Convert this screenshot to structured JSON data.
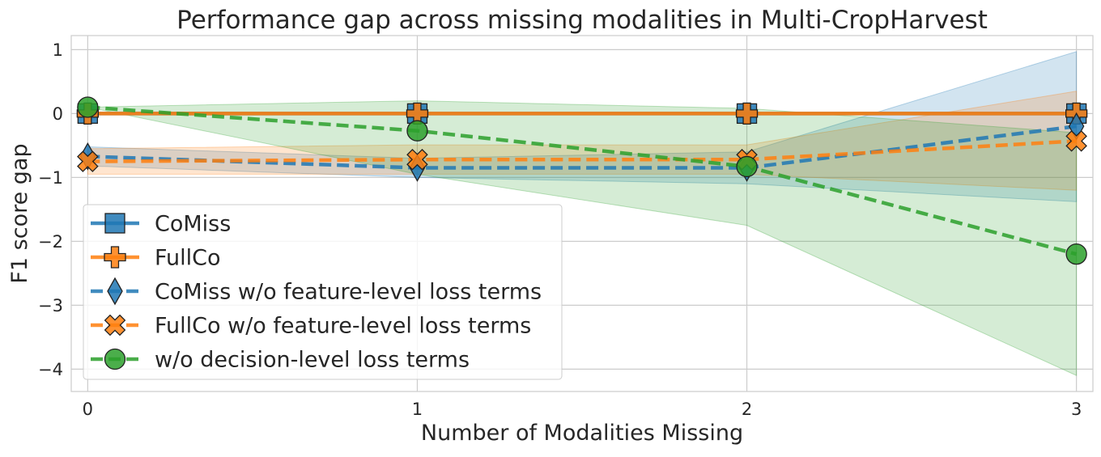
{
  "chart_data": {
    "type": "line",
    "title": "Performance gap across missing modalities in Multi-CropHarvest",
    "xlabel": "Number of Modalities Missing",
    "ylabel": "F1 score gap",
    "x": [
      0,
      1,
      2,
      3
    ],
    "xticks": [
      "0",
      "1",
      "2",
      "3"
    ],
    "yticks": [
      "1",
      "0",
      "−1",
      "−2",
      "−3",
      "−4"
    ],
    "ytick_values": [
      1,
      0,
      -1,
      -2,
      -3,
      -4
    ],
    "xlim": [
      -0.05,
      3.05
    ],
    "ylim": [
      -4.35,
      1.22
    ],
    "grid": true,
    "legend_position": "lower-left",
    "series": [
      {
        "name": "CoMiss",
        "values": [
          0,
          0,
          0,
          0
        ],
        "lower": [
          0,
          0,
          0,
          0
        ],
        "upper": [
          0,
          0,
          0,
          0
        ],
        "color": "#1f77b4",
        "dashed": false,
        "marker": "square"
      },
      {
        "name": "FullCo",
        "values": [
          0,
          0,
          0,
          0
        ],
        "lower": [
          0,
          0,
          0,
          0
        ],
        "upper": [
          0,
          0,
          0,
          0
        ],
        "color": "#ff7f0e",
        "dashed": false,
        "marker": "plus"
      },
      {
        "name": "CoMiss w/o feature-level loss terms",
        "values": [
          -0.67,
          -0.85,
          -0.85,
          -0.2
        ],
        "lower": [
          -0.82,
          -1.0,
          -1.1,
          -1.38
        ],
        "upper": [
          -0.52,
          -0.7,
          -0.6,
          0.97
        ],
        "color": "#1f77b4",
        "dashed": true,
        "marker": "diamond"
      },
      {
        "name": "FullCo w/o feature-level loss terms",
        "values": [
          -0.75,
          -0.72,
          -0.72,
          -0.43
        ],
        "lower": [
          -0.95,
          -0.95,
          -0.95,
          -1.2
        ],
        "upper": [
          -0.55,
          -0.49,
          -0.49,
          0.35
        ],
        "color": "#ff7f0e",
        "dashed": true,
        "marker": "x"
      },
      {
        "name": "w/o decision-level loss terms",
        "values": [
          0.1,
          -0.27,
          -0.83,
          -2.2
        ],
        "lower": [
          0.1,
          -0.95,
          -1.75,
          -4.1
        ],
        "upper": [
          0.1,
          0.2,
          0.08,
          -0.3
        ],
        "color": "#2ca02c",
        "dashed": true,
        "marker": "circle"
      }
    ]
  }
}
